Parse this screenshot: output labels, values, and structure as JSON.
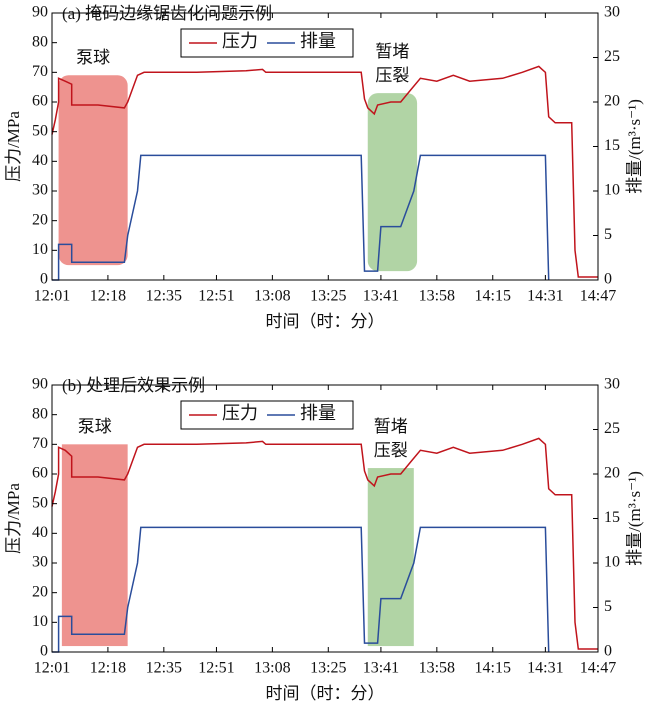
{
  "chart_data": [
    {
      "type": "line",
      "title": "(a) 掩码边缘锯齿化问题示例",
      "xlabel": "时间（时：分）",
      "ylabel": "压力/MPa",
      "y2label": "排量/(m³·s⁻¹)",
      "xlim": [
        "12:01",
        "14:47"
      ],
      "xticks": [
        "12:01",
        "12:18",
        "12:35",
        "12:51",
        "13:08",
        "13:25",
        "13:41",
        "13:58",
        "14:15",
        "14:31",
        "14:47"
      ],
      "ylim": [
        0,
        90
      ],
      "yticks": [
        0,
        10,
        20,
        30,
        40,
        50,
        60,
        70,
        80,
        90
      ],
      "y2lim": [
        0,
        30
      ],
      "y2ticks": [
        0,
        5,
        10,
        15,
        20,
        25,
        30
      ],
      "series": [
        {
          "name": "压力",
          "color": "#c0141c",
          "x": [
            "12:01",
            "12:02",
            "12:03",
            "12:03",
            "12:05",
            "12:07",
            "12:07",
            "12:15",
            "12:23",
            "12:24",
            "12:27",
            "12:29",
            "12:45",
            "13:00",
            "13:05",
            "13:06",
            "13:20",
            "13:35",
            "13:36",
            "13:37",
            "13:39",
            "13:40",
            "13:44",
            "13:47",
            "13:50",
            "13:53",
            "13:58",
            "14:03",
            "14:08",
            "14:18",
            "14:24",
            "14:29",
            "14:30",
            "14:31",
            "14:32",
            "14:34",
            "14:39",
            "14:40",
            "14:41",
            "14:47"
          ],
          "values": [
            49,
            54,
            60,
            68,
            67,
            66,
            59,
            59,
            58,
            60,
            69,
            70,
            70,
            70.5,
            71,
            70,
            70,
            70,
            61,
            58,
            56,
            59,
            60,
            60,
            64,
            68,
            67,
            69,
            67,
            68,
            70,
            72,
            71,
            70,
            55,
            53,
            53,
            10,
            1,
            1
          ]
        },
        {
          "name": "排量",
          "color": "#2a4d9b",
          "axis": "y2",
          "x": [
            "12:01",
            "12:03",
            "12:03",
            "12:07",
            "12:07",
            "12:23",
            "12:24",
            "12:27",
            "12:28",
            "13:35",
            "13:36",
            "13:40",
            "13:41",
            "13:47",
            "13:51",
            "13:53",
            "14:31",
            "14:32"
          ],
          "values": [
            0,
            0,
            4,
            4,
            2,
            2,
            5,
            10,
            14,
            14,
            1,
            1,
            6,
            6,
            10,
            14,
            14,
            0
          ]
        }
      ],
      "regions": [
        {
          "label": [
            "泵球"
          ],
          "color": "#ec8783",
          "x": [
            "12:03",
            "12:24"
          ],
          "y": [
            5,
            69
          ]
        },
        {
          "label": [
            "暂堵",
            "压裂"
          ],
          "color": "#a9cf9b",
          "x": [
            "13:37",
            "13:52"
          ],
          "y": [
            3,
            63
          ]
        }
      ]
    },
    {
      "type": "line",
      "title": "(b) 处理后效果示例",
      "xlabel": "时间（时：分）",
      "ylabel": "压力/MPa",
      "y2label": "排量/(m³·s⁻¹)",
      "xlim": [
        "12:01",
        "14:47"
      ],
      "xticks": [
        "12:01",
        "12:18",
        "12:35",
        "12:51",
        "13:08",
        "13:25",
        "13:41",
        "13:58",
        "14:15",
        "14:31",
        "14:47"
      ],
      "ylim": [
        0,
        90
      ],
      "yticks": [
        0,
        10,
        20,
        30,
        40,
        50,
        60,
        70,
        80,
        90
      ],
      "y2lim": [
        0,
        30
      ],
      "y2ticks": [
        0,
        5,
        10,
        15,
        20,
        25,
        30
      ],
      "series": [
        {
          "name": "压力",
          "color": "#c0141c",
          "x": [
            "12:01",
            "12:02",
            "12:03",
            "12:03",
            "12:05",
            "12:07",
            "12:07",
            "12:15",
            "12:23",
            "12:24",
            "12:27",
            "12:29",
            "12:45",
            "13:00",
            "13:05",
            "13:06",
            "13:20",
            "13:35",
            "13:36",
            "13:37",
            "13:39",
            "13:40",
            "13:44",
            "13:47",
            "13:50",
            "13:53",
            "13:58",
            "14:03",
            "14:08",
            "14:18",
            "14:24",
            "14:29",
            "14:30",
            "14:31",
            "14:32",
            "14:34",
            "14:39",
            "14:40",
            "14:41",
            "14:47"
          ],
          "values": [
            49,
            54,
            60,
            69,
            68,
            66,
            59,
            59,
            58,
            60,
            69,
            70,
            70,
            70.5,
            71,
            70,
            70,
            70,
            61,
            58,
            56,
            59,
            60,
            60,
            64,
            68,
            67,
            69,
            67,
            68,
            70,
            72,
            71,
            70,
            55,
            53,
            53,
            10,
            1,
            1
          ]
        },
        {
          "name": "排量",
          "color": "#2a4d9b",
          "axis": "y2",
          "x": [
            "12:01",
            "12:03",
            "12:03",
            "12:07",
            "12:07",
            "12:23",
            "12:24",
            "12:27",
            "12:28",
            "13:35",
            "13:36",
            "13:40",
            "13:41",
            "13:47",
            "13:51",
            "13:53",
            "14:31",
            "14:32"
          ],
          "values": [
            0,
            0,
            4,
            4,
            2,
            2,
            5,
            10,
            14,
            14,
            1,
            1,
            6,
            6,
            10,
            14,
            14,
            0
          ]
        }
      ],
      "regions": [
        {
          "label": [
            "泵球"
          ],
          "color": "#ec8783",
          "x": [
            "12:04",
            "12:24"
          ],
          "y": [
            2,
            70
          ]
        },
        {
          "label": [
            "暂堵",
            "压裂"
          ],
          "color": "#a9cf9b",
          "x": [
            "13:37",
            "13:51"
          ],
          "y": [
            2,
            62
          ]
        }
      ]
    }
  ]
}
